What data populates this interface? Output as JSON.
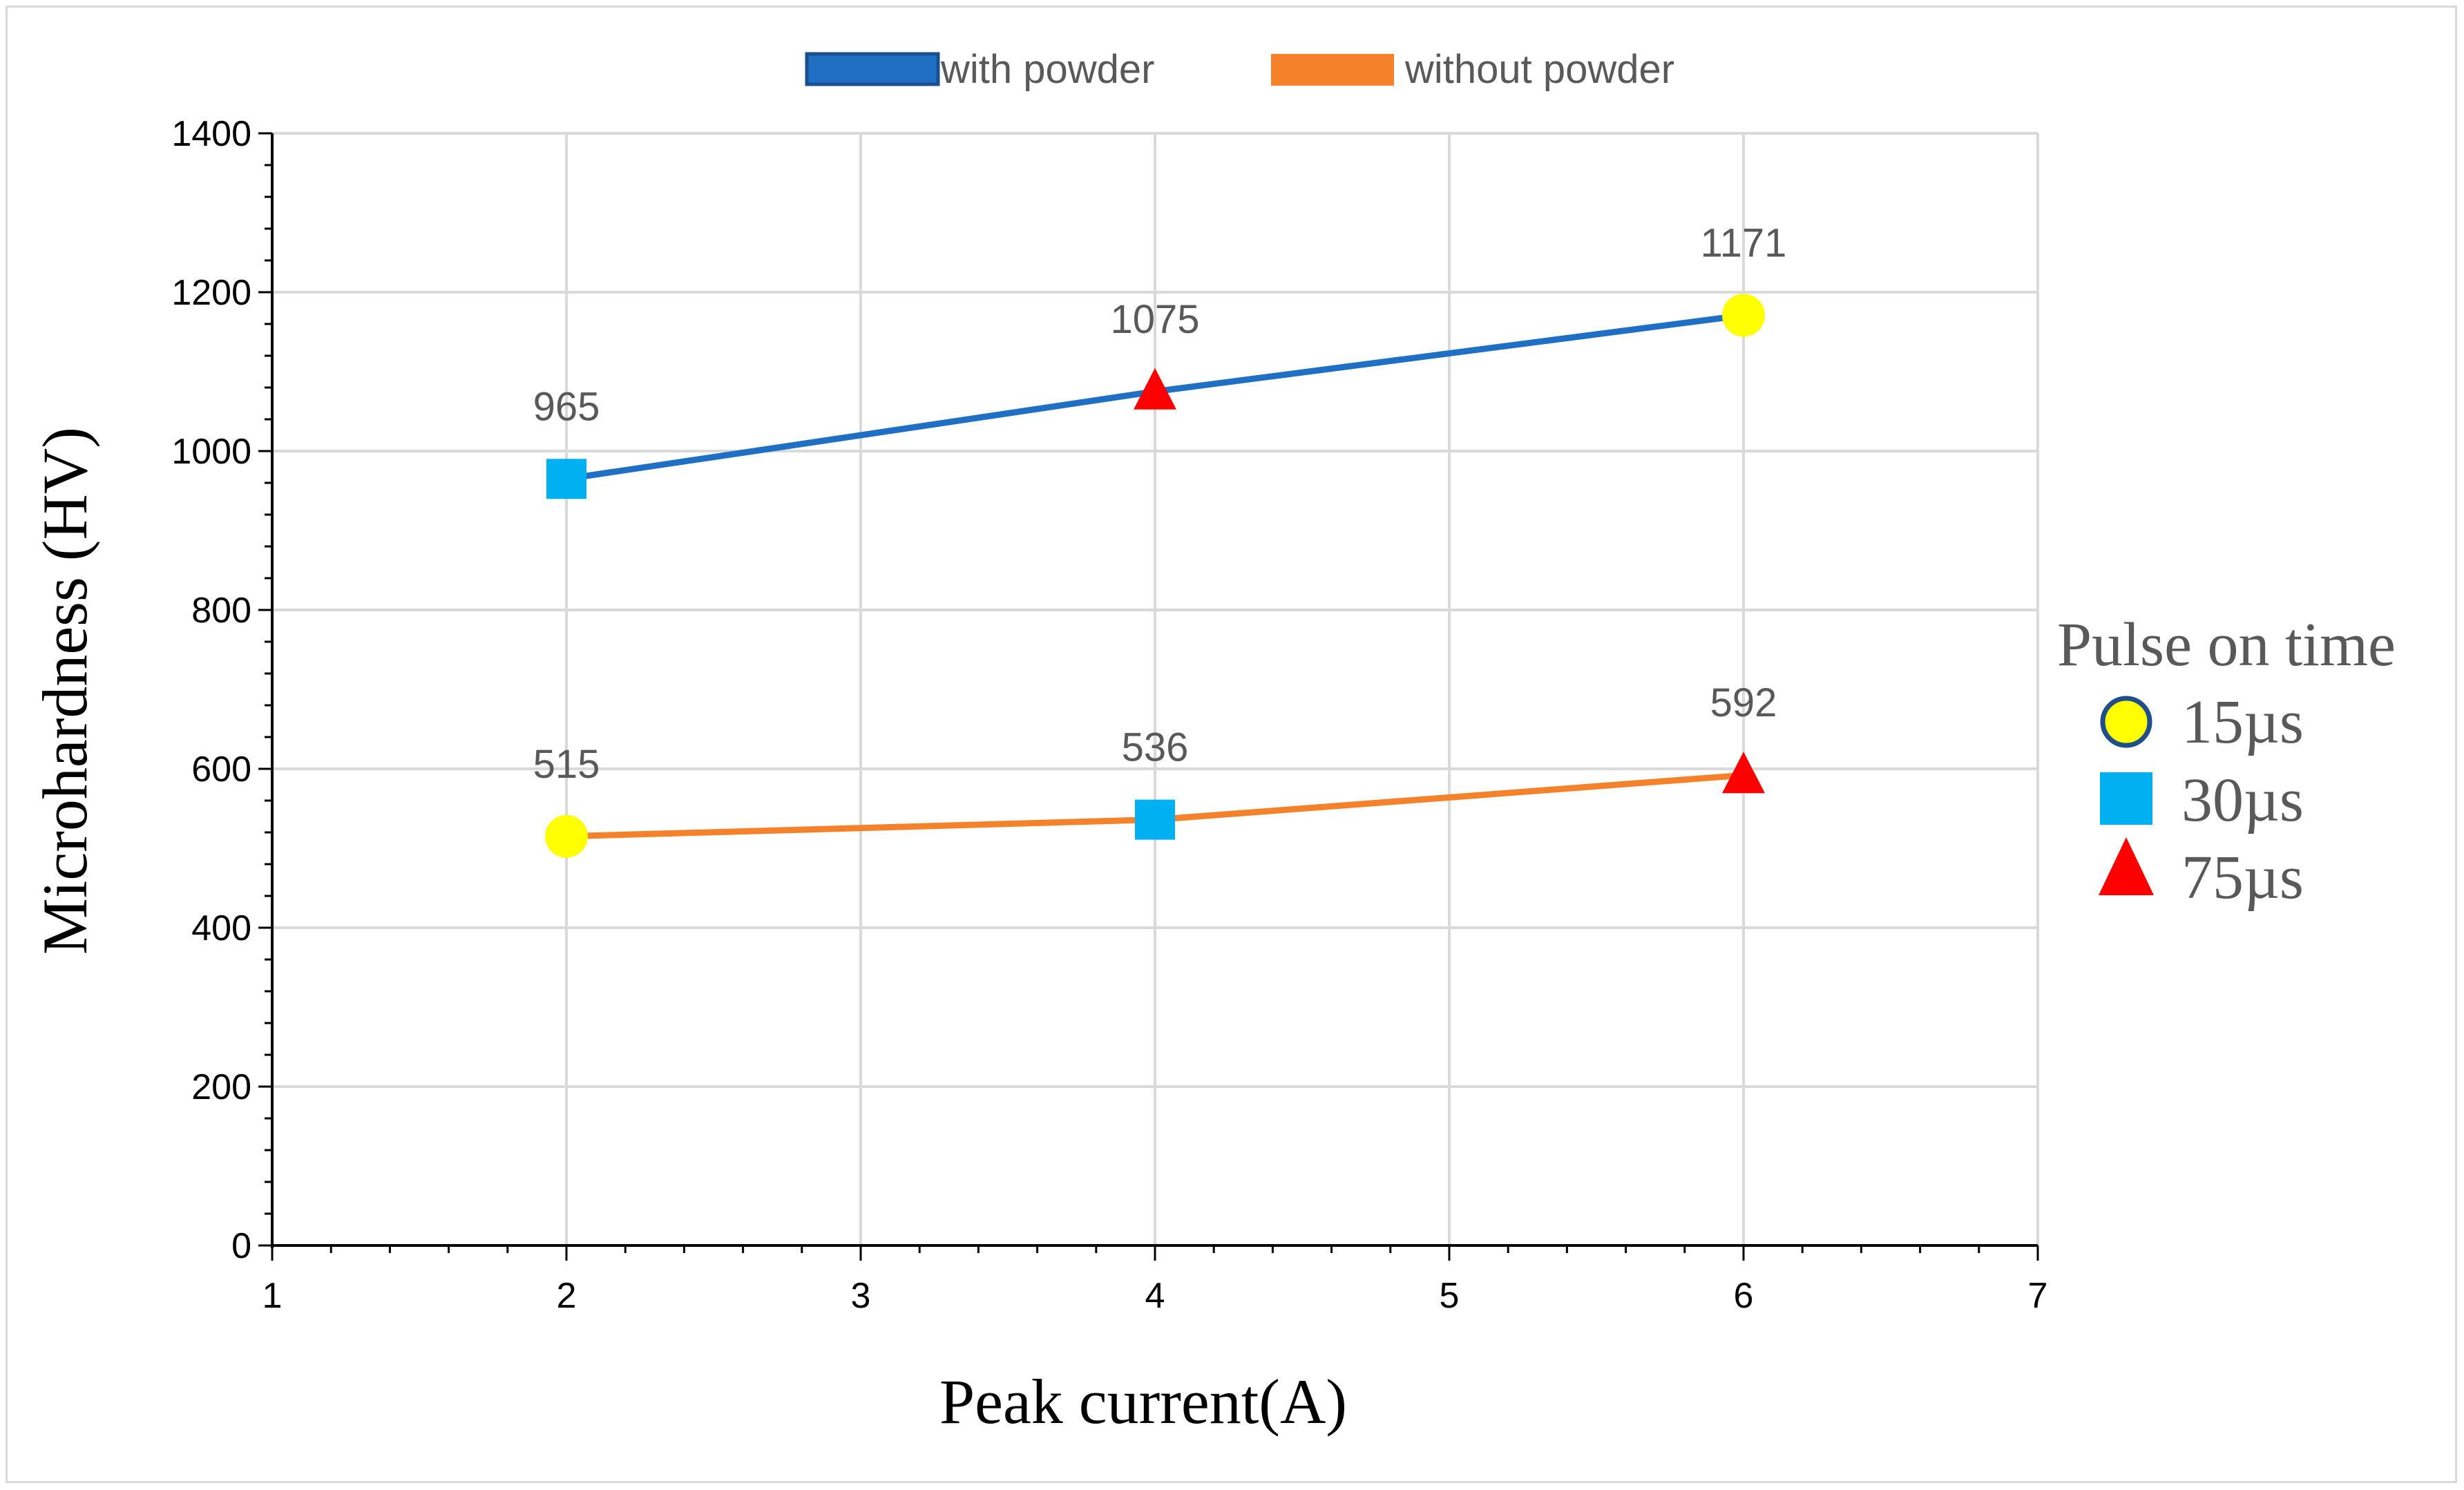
{
  "chart_data": {
    "type": "line",
    "title": "",
    "xlabel": "Peak current(A)",
    "ylabel": "Microhardness (HV)",
    "xlim": [
      1,
      7
    ],
    "ylim": [
      0,
      1400
    ],
    "x_ticks": [
      1,
      2,
      3,
      4,
      5,
      6,
      7
    ],
    "y_ticks": [
      0,
      200,
      400,
      600,
      800,
      1000,
      1200,
      1400
    ],
    "grid": true,
    "legend_position": "top",
    "series": [
      {
        "name": "with powder",
        "color": "#1f6fc5",
        "x": [
          2,
          4,
          6
        ],
        "values": [
          965,
          1075,
          1171
        ],
        "labels": [
          "965",
          "1075",
          "1171"
        ],
        "markers": [
          "square",
          "triangle",
          "circle"
        ]
      },
      {
        "name": "without powder",
        "color": "#f6812b",
        "x": [
          2,
          4,
          6
        ],
        "values": [
          515,
          536,
          592
        ],
        "labels": [
          "515",
          "536",
          "592"
        ],
        "markers": [
          "circle",
          "square",
          "triangle"
        ]
      }
    ],
    "marker_legend": {
      "title": "Pulse on time",
      "items": [
        {
          "label": "15µs",
          "marker": "circle",
          "color": "#ffff00"
        },
        {
          "label": "30µs",
          "marker": "square",
          "color": "#00b0f0"
        },
        {
          "label": "75µs",
          "marker": "triangle",
          "color": "#ff0000"
        }
      ]
    }
  }
}
